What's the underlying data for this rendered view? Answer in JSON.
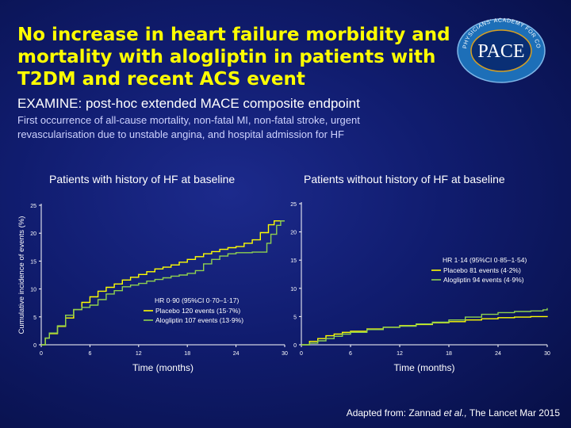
{
  "slide": {
    "title": "No increase in heart failure morbidity and mortality with alogliptin in patients with T2DM and recent ACS event",
    "subtitle": "EXAMINE: post-hoc extended MACE composite endpoint",
    "description": "First occurrence of all-cause mortality, non-fatal MI, non-fatal stroke, urgent revascularisation due to unstable angina, and hospital admission for HF",
    "citation_prefix": "Adapted from: Zannad ",
    "citation_etal": "et al.,",
    "citation_suffix": " The Lancet  Mar 2015"
  },
  "logo": {
    "text": "PACE",
    "ring_text": "PHYSICIANS' ACADEMY FOR CONTINUING EDUCATION",
    "colors": {
      "ring": "#1d6fb8",
      "inner": "#0a2f75",
      "accent": "#d8a020"
    }
  },
  "colors": {
    "placebo": "#ffff00",
    "alogliptin": "#8fd14f",
    "background": "#101c6e",
    "title": "#ffff00"
  },
  "chart_data": [
    {
      "type": "line",
      "title": "Patients with history of HF at baseline",
      "xlabel": "Time (months)",
      "ylabel": "Cumulative incidence of events (%)",
      "xlim": [
        0,
        30
      ],
      "ylim": [
        0,
        25
      ],
      "xticks": [
        0,
        6,
        12,
        18,
        24,
        30
      ],
      "yticks": [
        0,
        5,
        10,
        15,
        20,
        25
      ],
      "annotation": "HR 0·90 (95%CI 0·70–1·17)",
      "series": [
        {
          "name": "Placebo 120 events (15·7%)",
          "color": "#ffff00",
          "points": [
            [
              0,
              0
            ],
            [
              0.5,
              1.2
            ],
            [
              1,
              2
            ],
            [
              2,
              3.3
            ],
            [
              3,
              4.8
            ],
            [
              4,
              6.3
            ],
            [
              5,
              7.6
            ],
            [
              6,
              8.6
            ],
            [
              7,
              9.6
            ],
            [
              8,
              10.3
            ],
            [
              9,
              10.9
            ],
            [
              10,
              11.6
            ],
            [
              11,
              12.1
            ],
            [
              12,
              12.6
            ],
            [
              13,
              13.1
            ],
            [
              14,
              13.6
            ],
            [
              15,
              13.9
            ],
            [
              16,
              14.3
            ],
            [
              17,
              14.8
            ],
            [
              18,
              15.3
            ],
            [
              19,
              15.8
            ],
            [
              20,
              16.3
            ],
            [
              21,
              16.7
            ],
            [
              22,
              17.1
            ],
            [
              23,
              17.4
            ],
            [
              24,
              17.6
            ],
            [
              25,
              18.2
            ],
            [
              26,
              18.8
            ],
            [
              27,
              20.1
            ],
            [
              28,
              21.5
            ],
            [
              28.7,
              22.2
            ],
            [
              30,
              22.2
            ]
          ]
        },
        {
          "name": "Alogliptin 107 events (13·9%)",
          "color": "#8fd14f",
          "points": [
            [
              0,
              0
            ],
            [
              0.5,
              1.2
            ],
            [
              1,
              2.1
            ],
            [
              2,
              3.4
            ],
            [
              3,
              5.3
            ],
            [
              4,
              6.3
            ],
            [
              5,
              6.7
            ],
            [
              6,
              7.1
            ],
            [
              7,
              8.1
            ],
            [
              8,
              9.1
            ],
            [
              9,
              9.7
            ],
            [
              10,
              10.4
            ],
            [
              11,
              10.7
            ],
            [
              12,
              11
            ],
            [
              13,
              11.4
            ],
            [
              14,
              11.7
            ],
            [
              15,
              12
            ],
            [
              16,
              12.3
            ],
            [
              17,
              12.5
            ],
            [
              18,
              12.8
            ],
            [
              19,
              13.3
            ],
            [
              20,
              14.5
            ],
            [
              21,
              15.3
            ],
            [
              22,
              15.9
            ],
            [
              23,
              16.3
            ],
            [
              24,
              16.5
            ],
            [
              25,
              16.5
            ],
            [
              26,
              16.6
            ],
            [
              27,
              16.6
            ],
            [
              27.8,
              18.2
            ],
            [
              28.3,
              19.8
            ],
            [
              29,
              21.4
            ],
            [
              29.5,
              22.2
            ],
            [
              30,
              22.2
            ]
          ]
        }
      ]
    },
    {
      "type": "line",
      "title": "Patients without history of HF at baseline",
      "xlabel": "Time (months)",
      "ylabel": "",
      "xlim": [
        0,
        30
      ],
      "ylim": [
        0,
        25
      ],
      "xticks": [
        0,
        6,
        12,
        18,
        24,
        30
      ],
      "yticks": [
        0,
        5,
        10,
        15,
        20,
        25
      ],
      "annotation": "HR 1·14 (95%CI 0·85–1·54)",
      "series": [
        {
          "name": "Placebo 81 events (4·2%)",
          "color": "#ffff00",
          "points": [
            [
              0,
              0
            ],
            [
              1,
              0.6
            ],
            [
              2,
              1.1
            ],
            [
              3,
              1.6
            ],
            [
              4,
              1.9
            ],
            [
              5,
              2.2
            ],
            [
              6,
              2.4
            ],
            [
              8,
              2.8
            ],
            [
              10,
              3.1
            ],
            [
              12,
              3.4
            ],
            [
              14,
              3.6
            ],
            [
              16,
              3.9
            ],
            [
              18,
              4.1
            ],
            [
              20,
              4.4
            ],
            [
              22,
              4.6
            ],
            [
              24,
              4.8
            ],
            [
              26,
              4.9
            ],
            [
              28,
              5
            ],
            [
              30,
              5.1
            ]
          ]
        },
        {
          "name": "Alogliptin 94 events (4·9%)",
          "color": "#8fd14f",
          "points": [
            [
              0,
              0
            ],
            [
              1,
              0.3
            ],
            [
              2,
              0.7
            ],
            [
              3,
              1.1
            ],
            [
              4,
              1.5
            ],
            [
              5,
              1.9
            ],
            [
              6,
              2.2
            ],
            [
              8,
              2.7
            ],
            [
              10,
              3.1
            ],
            [
              12,
              3.3
            ],
            [
              14,
              3.7
            ],
            [
              16,
              4
            ],
            [
              18,
              4.4
            ],
            [
              20,
              4.9
            ],
            [
              22,
              5.4
            ],
            [
              24,
              5.7
            ],
            [
              26,
              5.9
            ],
            [
              28,
              6
            ],
            [
              29.5,
              6.2
            ],
            [
              30,
              6.5
            ]
          ]
        }
      ]
    }
  ]
}
